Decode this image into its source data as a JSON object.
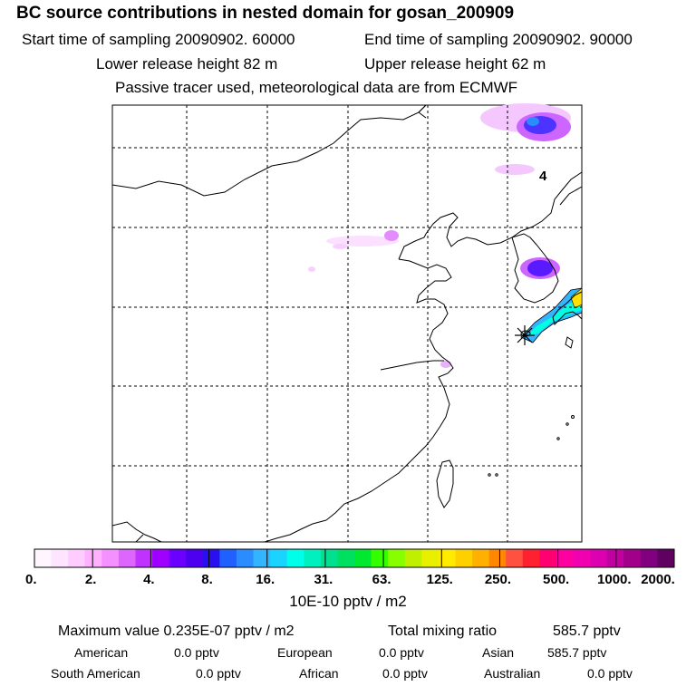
{
  "header": {
    "title": "BC  source contributions in nested domain for gosan_200909",
    "start_label": "Start time of sampling 20090902. 60000",
    "end_label": "End time of sampling 20090902. 90000",
    "lower_label": "Lower release height   82 m",
    "upper_label": "Upper release height   62 m",
    "tracer_label": "Passive tracer used, meteorological data are from ECMWF"
  },
  "map": {
    "day_marker": "4"
  },
  "legend": {
    "colors": [
      "#fff5ff",
      "#ffe4ff",
      "#ffccff",
      "#ffb0ff",
      "#f490ff",
      "#dd66ff",
      "#c033ff",
      "#a000ff",
      "#6a00ff",
      "#4d00f0",
      "#2a10f0",
      "#2060ff",
      "#2a8cff",
      "#33b4ff",
      "#1ad4ff",
      "#00ffe8",
      "#00f0c0",
      "#00e090",
      "#00e060",
      "#00e830",
      "#33ff00",
      "#88ff00",
      "#c0f000",
      "#e8f000",
      "#ffea00",
      "#ffd000",
      "#ffb000",
      "#ff8800",
      "#ff5040",
      "#ff2030",
      "#ff0070",
      "#ff00a0",
      "#f000b0",
      "#dd00b0",
      "#c000a0",
      "#a0008a",
      "#800080",
      "#600060"
    ],
    "ticks": [
      "0.",
      "2.",
      "4.",
      "8.",
      "16.",
      "31.",
      "63.",
      "125.",
      "250.",
      "500.",
      "1000.",
      "2000."
    ],
    "unit": "10E-10 pptv / m2"
  },
  "stats": {
    "max_label": "Maximum value  0.235E-07 pptv / m2",
    "total_label": "Total mixing ratio",
    "total_value": "585.7 pptv",
    "regions": [
      {
        "name": "American",
        "value": "0.0 pptv"
      },
      {
        "name": "European",
        "value": "0.0 pptv"
      },
      {
        "name": "Asian",
        "value": "585.7 pptv"
      },
      {
        "name": "South American",
        "value": "0.0 pptv"
      },
      {
        "name": "African",
        "value": "0.0 pptv"
      },
      {
        "name": "Australian",
        "value": "0.0 pptv"
      }
    ]
  }
}
